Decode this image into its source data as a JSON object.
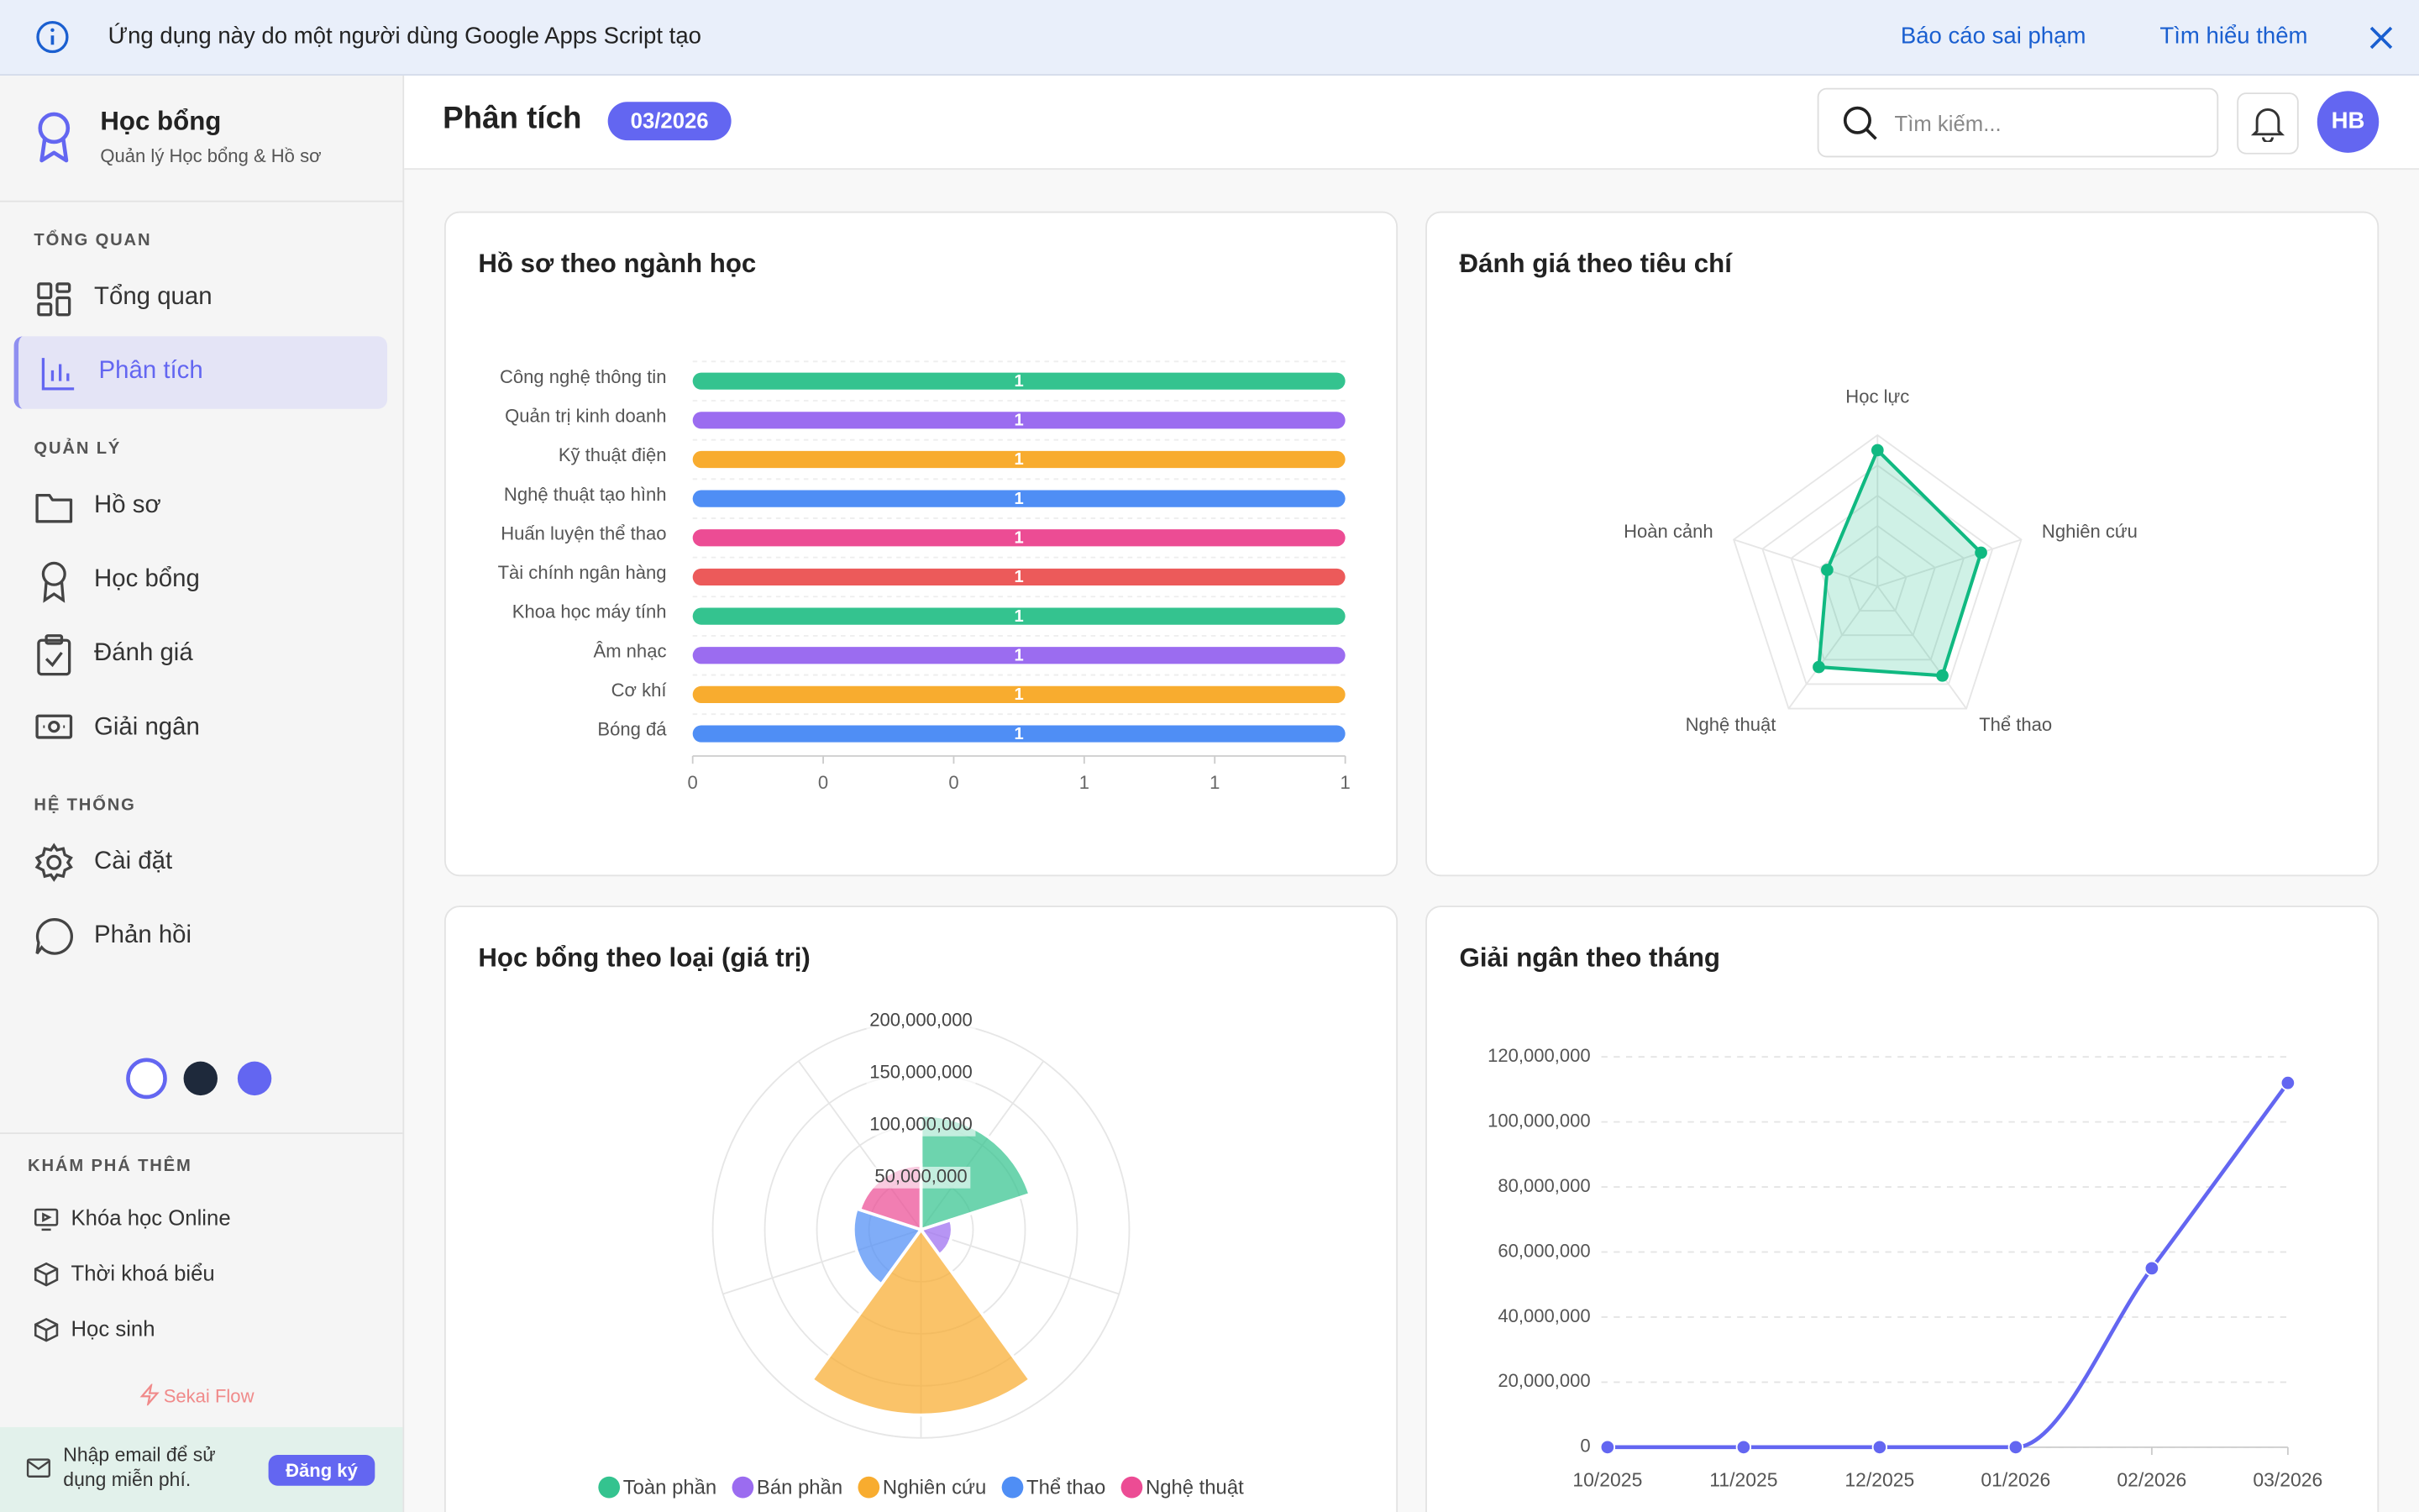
{
  "banner": {
    "message": "Ứng dụng này do một người dùng Google Apps Script tạo",
    "links": [
      "Báo cáo sai phạm",
      "Tìm hiểu thêm"
    ]
  },
  "sidebar": {
    "brand": "Học bổng",
    "tagline": "Quản lý Học bổng & Hồ sơ",
    "sections": [
      {
        "title": "TỔNG QUAN",
        "items": [
          "Tổng quan",
          "Phân tích"
        ]
      },
      {
        "title": "QUẢN LÝ",
        "items": [
          "Hồ sơ",
          "Học bổng",
          "Đánh giá",
          "Giải ngân"
        ]
      },
      {
        "title": "HỆ THỐNG",
        "items": [
          "Cài đặt",
          "Phản hồi"
        ]
      }
    ],
    "explore": {
      "title": "KHÁM PHÁ THÊM",
      "items": [
        "Khóa học Online",
        "Thời khoá biểu",
        "Học sinh"
      ]
    },
    "footer_brand": "Sekai Flow",
    "signup": {
      "text": "Nhập email để sử dụng miễn phí.",
      "button": "Đăng ký"
    }
  },
  "header": {
    "title": "Phân tích",
    "badge": "03/2026",
    "search_placeholder": "Tìm kiếm...",
    "avatar": "HB"
  },
  "chart_data": [
    {
      "type": "bar",
      "orientation": "horizontal",
      "title": "Hồ sơ theo ngành học",
      "categories": [
        "Công nghệ thông tin",
        "Quản trị kinh doanh",
        "Kỹ thuật điện",
        "Nghệ thuật tạo hình",
        "Huấn luyện thể thao",
        "Tài chính ngân hàng",
        "Khoa học máy tính",
        "Âm nhạc",
        "Cơ khí",
        "Bóng đá"
      ],
      "values": [
        1,
        1,
        1,
        1,
        1,
        1,
        1,
        1,
        1,
        1
      ],
      "colors": [
        "#34c38f",
        "#9b6cf0",
        "#f8ac2f",
        "#4f8ef5",
        "#ec4c94",
        "#ec5a5a",
        "#34c38f",
        "#9b6cf0",
        "#f8ac2f",
        "#4f8ef5"
      ],
      "xlim": [
        0,
        1
      ],
      "xticks": [
        0,
        {
          "value": 0.2,
          "label": "0"
        },
        {
          "value": 0.4,
          "label": "0"
        },
        {
          "value": 0.6,
          "label": "1"
        },
        {
          "value": 0.8,
          "label": "1"
        },
        1
      ]
    },
    {
      "type": "radar",
      "title": "Đánh giá theo tiêu chí",
      "categories": [
        "Học lực",
        "Nghiên cứu",
        "Thể thao",
        "Nghệ thuật",
        "Hoàn cảnh"
      ],
      "values": [
        9,
        7.2,
        7.3,
        6.6,
        3.5
      ],
      "color": "#10b981",
      "rlim": [
        0,
        10
      ]
    },
    {
      "type": "polarArea",
      "title": "Học bổng theo loại (giá trị)",
      "categories": [
        "Toàn phần",
        "Bán phần",
        "Nghiên cứu",
        "Thể thao",
        "Nghệ thuật"
      ],
      "values": [
        110000000,
        30000000,
        178000000,
        65000000,
        62000000
      ],
      "colors": [
        "#34c38f",
        "#9b6cf0",
        "#f8ac2f",
        "#4f8ef5",
        "#ec4c94"
      ],
      "rlim": [
        0,
        200000000
      ],
      "rticks": [
        {
          "value": 50000000,
          "label": "50,000,000"
        },
        {
          "value": 100000000,
          "label": "100,000,000"
        },
        {
          "value": 150000000,
          "label": "150,000,000"
        },
        {
          "value": 200000000,
          "label": "200,000,000"
        }
      ],
      "legend": "bottom"
    },
    {
      "type": "line",
      "title": "Giải ngân theo tháng",
      "categories": [
        "10/2025",
        "11/2025",
        "12/2025",
        "01/2026",
        "02/2026",
        "03/2026"
      ],
      "values": [
        0,
        0,
        0,
        0,
        55000000,
        112000000
      ],
      "color": "#6366f1",
      "ylim": [
        0,
        120000000
      ],
      "yticks": [
        0,
        {
          "value": 20000000,
          "label": "20,000,000"
        },
        {
          "value": 40000000,
          "label": "40,000,000"
        },
        {
          "value": 60000000,
          "label": "60,000,000"
        },
        {
          "value": 80000000,
          "label": "80,000,000"
        },
        {
          "value": 100000000,
          "label": "100,000,000"
        },
        {
          "value": 120000000,
          "label": "120,000,000"
        }
      ],
      "grid": true
    }
  ]
}
